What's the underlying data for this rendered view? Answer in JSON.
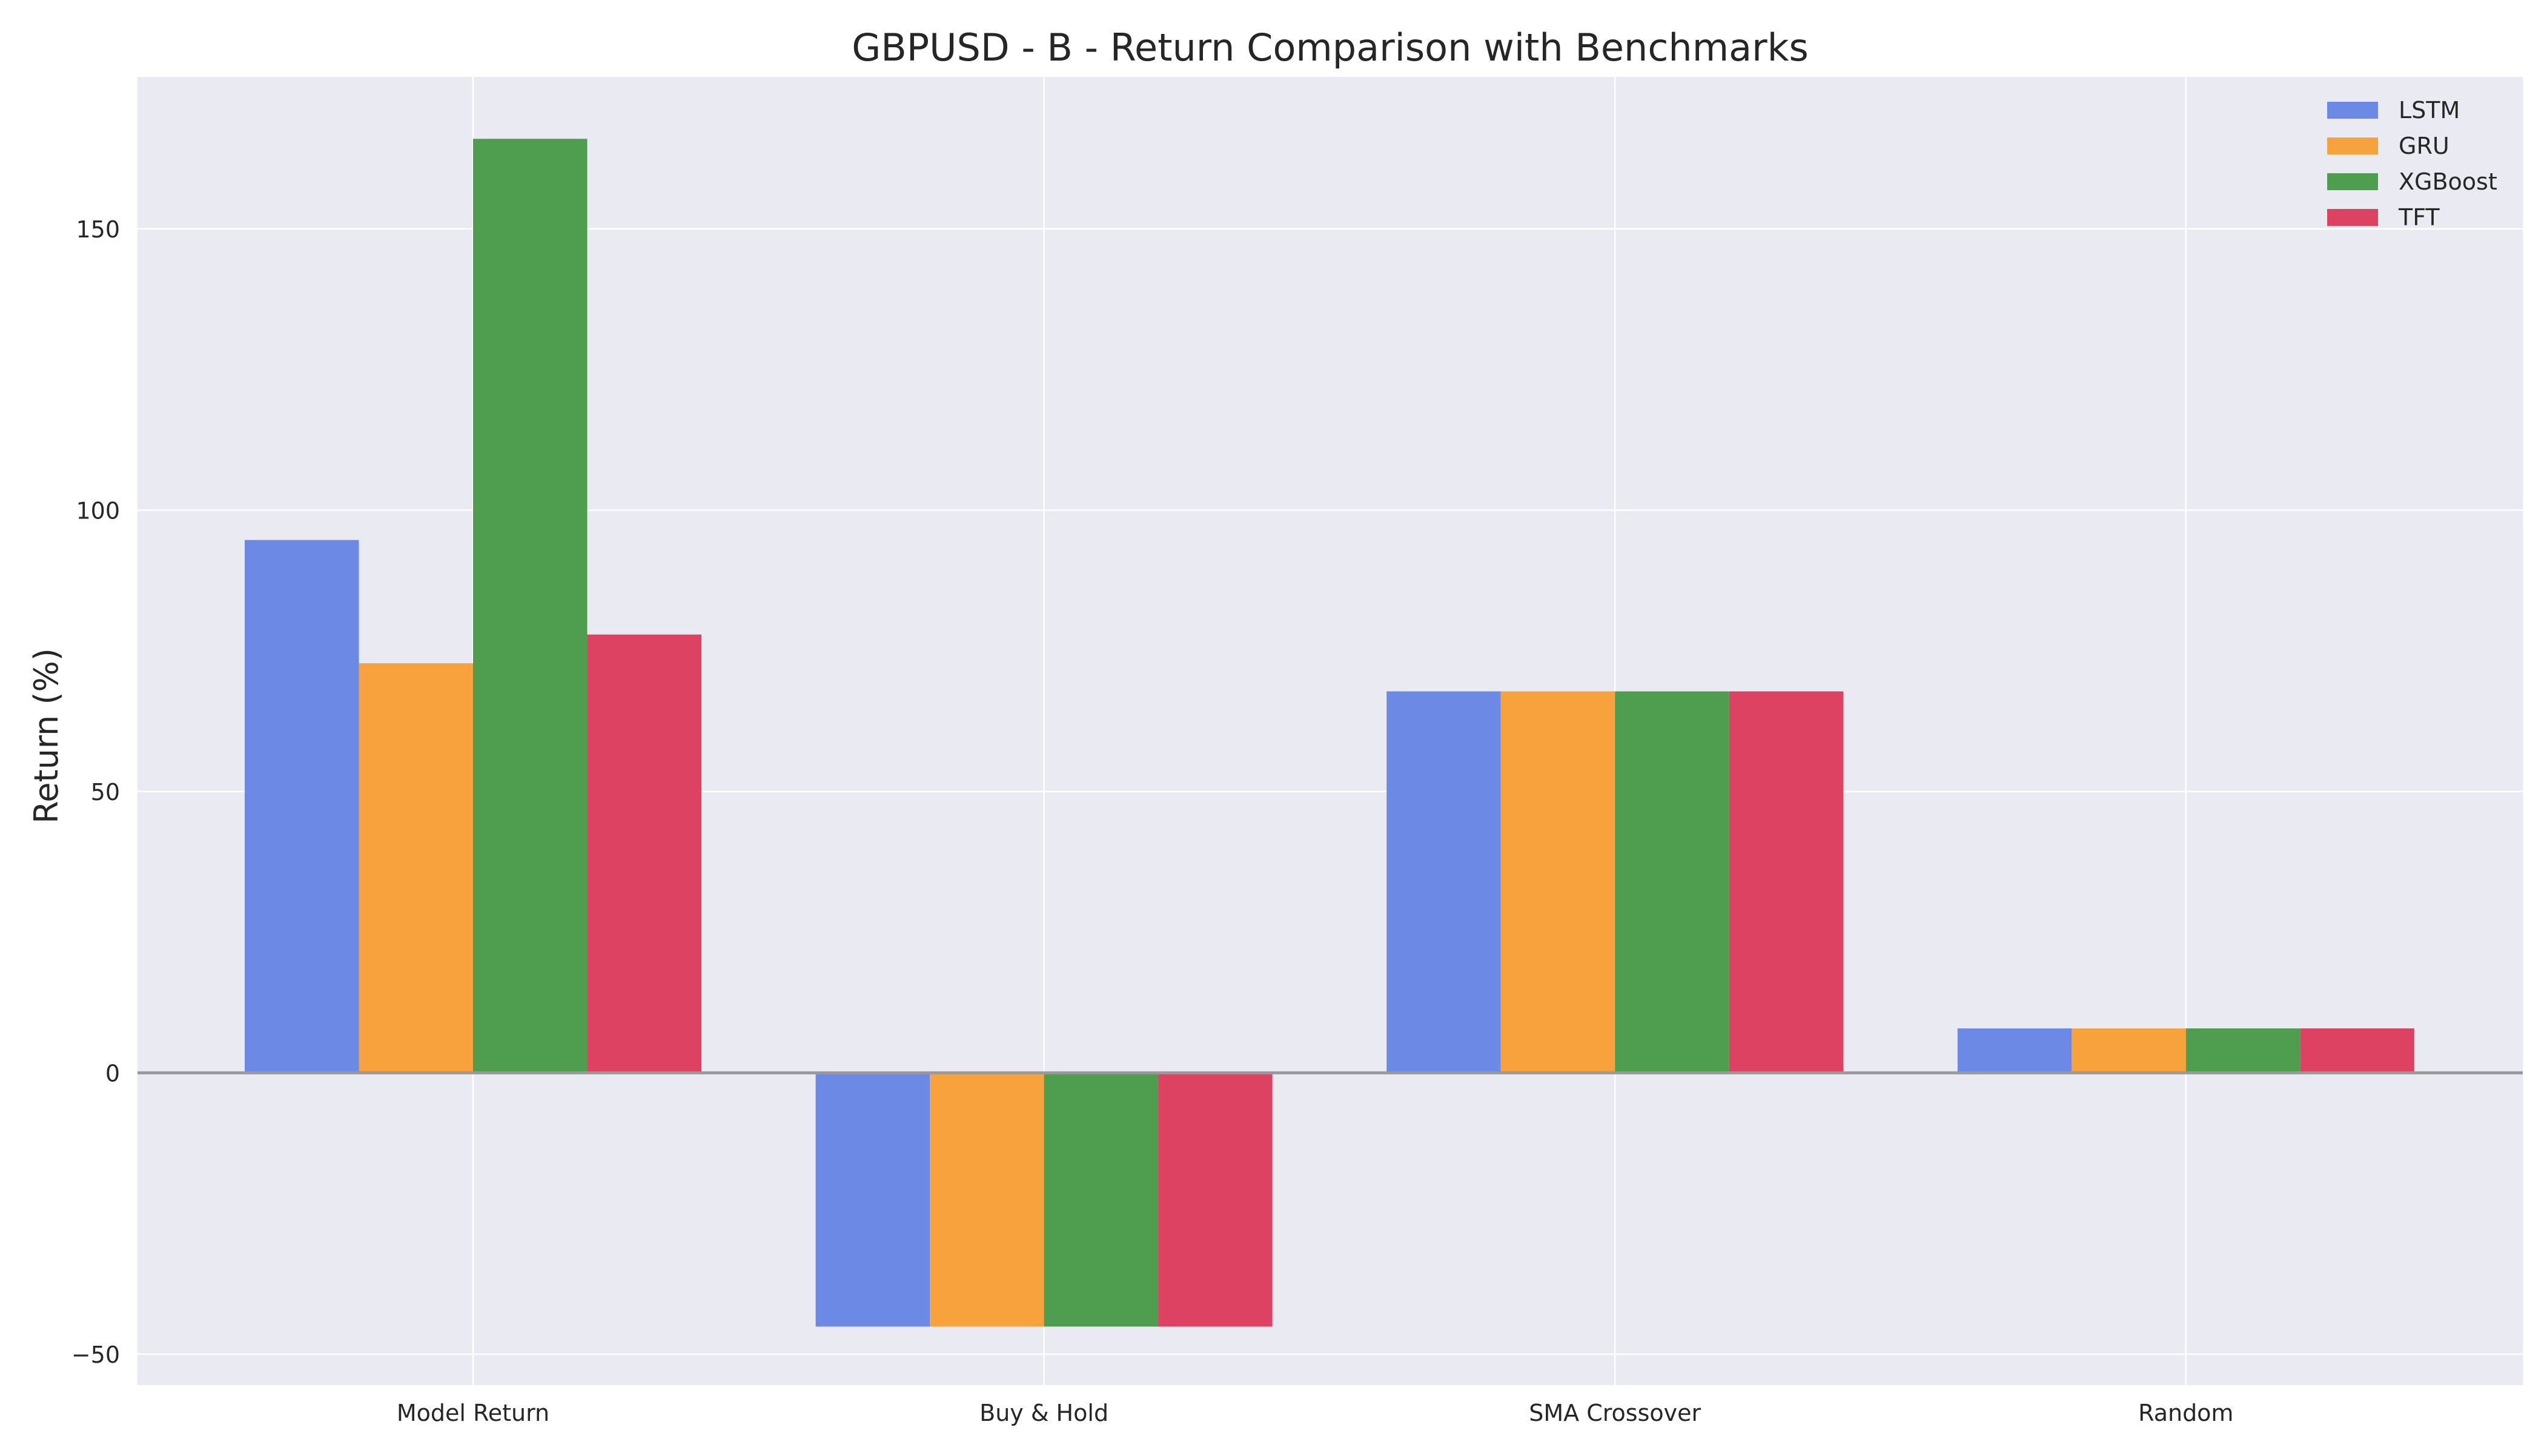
{
  "chart_data": {
    "type": "bar",
    "title": "GBPUSD - B - Return Comparison with Benchmarks",
    "xlabel": "",
    "ylabel": "Return (%)",
    "categories": [
      "Model Return",
      "Buy & Hold",
      "SMA Crossover",
      "Random"
    ],
    "series": [
      {
        "name": "LSTM",
        "color": "#6c89e6",
        "values": [
          94.7,
          -45.1,
          67.8,
          7.9
        ]
      },
      {
        "name": "GRU",
        "color": "#f7a23c",
        "values": [
          72.8,
          -45.1,
          67.8,
          7.9
        ]
      },
      {
        "name": "XGBoost",
        "color": "#4f9e4f",
        "values": [
          166.0,
          -45.1,
          67.8,
          7.9
        ]
      },
      {
        "name": "TFT",
        "color": "#de4262",
        "values": [
          77.9,
          -45.1,
          67.8,
          7.9
        ]
      }
    ],
    "ylim": [
      -55.5,
      177.0
    ],
    "yticks": [
      -50,
      0,
      50,
      100,
      150
    ],
    "ytick_labels": [
      "−50",
      "0",
      "50",
      "100",
      "150"
    ],
    "grid": true,
    "legend": "top-right",
    "colors": {
      "plot_background": "#eaeaf2",
      "grid": "#ffffff",
      "zero_line": "#999999"
    }
  }
}
